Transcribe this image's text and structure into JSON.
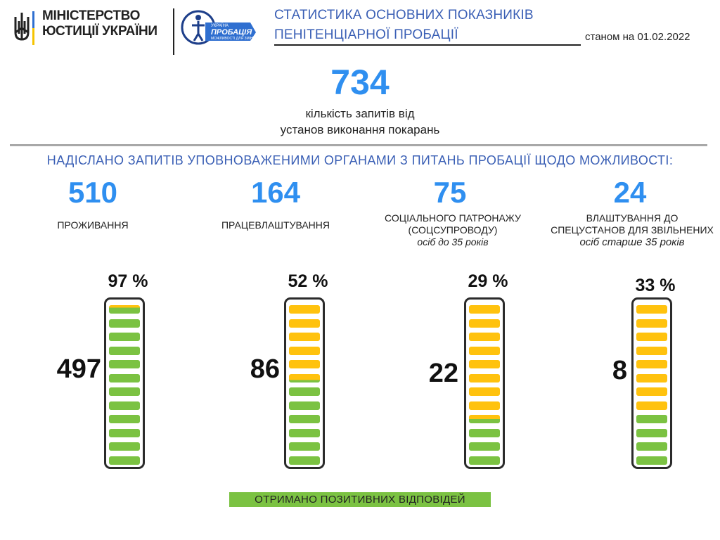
{
  "header": {
    "ministry_line1": "МІНІСТЕРСТВО",
    "ministry_line2": "ЮСТИЦІЇ УКРАЇНИ",
    "probation_logo_text1": "УКРАЇНА",
    "probation_logo_text2": "ПРОБАЦІЯ",
    "probation_logo_text3": "МОЖЛИВОСТІ ДЛЯ ЗМІН",
    "title_line1": "СТАТИСТИКА ОСНОВНИХ ПОКАЗНИКІВ",
    "title_line2": "ПЕНІТЕНЦІАРНОЇ ПРОБАЦІЇ",
    "as_of": "станом на 01.02.2022"
  },
  "summary": {
    "value": "734",
    "caption_line1": "кількість запитів від",
    "caption_line2": "установ виконання покарань"
  },
  "section_title": "НАДІСЛАНО ЗАПИТІВ УПОВНОВАЖЕНИМИ ОРГАНАМИ З ПИТАНЬ ПРОБАЦІЇ  ЩОДО МОЖЛИВОСТІ:",
  "categories": [
    {
      "value": "510",
      "label1": "ПРОЖИВАННЯ",
      "label2": "",
      "sub": "",
      "positive": "497",
      "pct_label": "97 %"
    },
    {
      "value": "164",
      "label1": "ПРАЦЕВЛАШТУВАННЯ",
      "label2": "",
      "sub": "",
      "positive": "86",
      "pct_label": "52 %"
    },
    {
      "value": "75",
      "label1": "СОЦІАЛЬНОГО ПАТРОНАЖУ",
      "label2": "(СОЦСУПРОВОДУ)",
      "sub": "осіб до 35 років",
      "positive": "22",
      "pct_label": "29 %"
    },
    {
      "value": "24",
      "label1": "ВЛАШТУВАННЯ ДО",
      "label2": "СПЕЦУСТАНОВ ДЛЯ ЗВІЛЬНЕНИХ",
      "sub": "осіб старше 35 років",
      "positive": "8",
      "pct_label": "33 %"
    }
  ],
  "legend": "ОТРИМАНО  ПОЗИТИВНИХ ВІДПОВІДЕЙ",
  "colors": {
    "accent": "#2f8ff0",
    "title": "#3a5fb5",
    "positive": "#7bc242",
    "remaining": "#ffc20e"
  },
  "chart_data": {
    "type": "bar",
    "categories": [
      "ПРОЖИВАННЯ",
      "ПРАЦЕВЛАШТУВАННЯ",
      "СОЦІАЛЬНОГО ПАТРОНАЖУ (СОЦСУПРОВОДУ)",
      "ВЛАШТУВАННЯ ДО СПЕЦУСТАНОВ ДЛЯ ЗВІЛЬНЕНИХ"
    ],
    "series": [
      {
        "name": "ОТРИМАНО  ПОЗИТИВНИХ ВІДПОВІДЕЙ",
        "values": [
          497,
          86,
          22,
          8
        ]
      }
    ],
    "totals": [
      510,
      164,
      75,
      24
    ],
    "percent": [
      97,
      52,
      29,
      33
    ]
  }
}
